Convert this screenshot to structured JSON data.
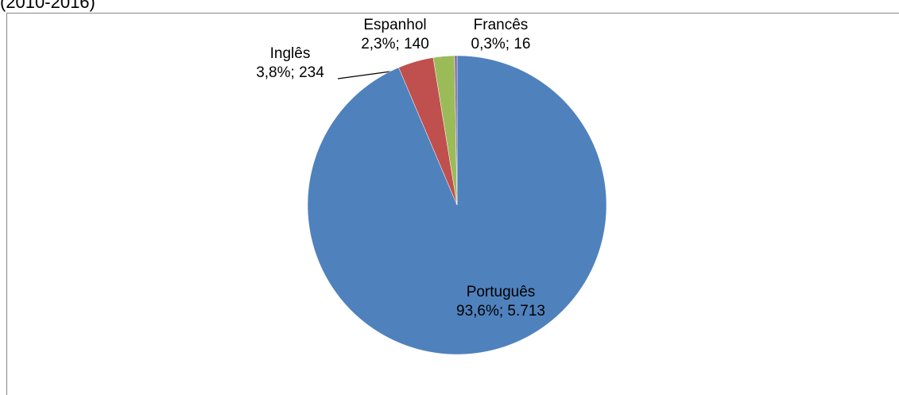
{
  "chart_data": {
    "type": "pie",
    "subtitle": "(2010-2016)",
    "categories": [
      "Português",
      "Inglês",
      "Espanhol",
      "Francês"
    ],
    "values": [
      5713,
      234,
      140,
      16
    ],
    "value_labels": [
      "93,6%; 5.713",
      "3,8%; 234",
      "2,3%; 140",
      "0,3%; 16"
    ],
    "colors": [
      "#4f81bd",
      "#c0504d",
      "#9bbb59",
      "#8064a2"
    ]
  }
}
